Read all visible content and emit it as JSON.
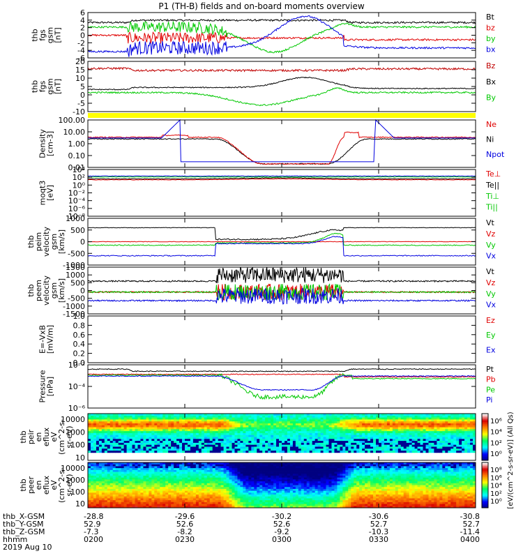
{
  "title": "P1 (TH-B) fields and on-board moments overview",
  "panels": [
    {
      "id": "fgs_gsm",
      "ylabel": [
        "thb",
        "fgs",
        "gsm",
        "[nT]"
      ],
      "yticks": [
        "6",
        "4",
        "2",
        "0",
        "-2",
        "-4",
        "-6"
      ],
      "legend": [
        {
          "text": "Bt",
          "color": "#000000"
        },
        {
          "text": "bz",
          "color": "#e00000"
        },
        {
          "text": "by",
          "color": "#00c800"
        },
        {
          "text": "bx",
          "color": "#0000e0"
        }
      ]
    },
    {
      "id": "fgs_gsm2",
      "ylabel": [
        "thb",
        "fgs",
        "gsm",
        "[nT]"
      ],
      "yticks": [
        "20",
        "15",
        "10",
        "5",
        "0",
        "-5",
        "-10"
      ],
      "legend": [
        {
          "text": "Bz",
          "color": "#c00000"
        },
        {
          "text": "Bx",
          "color": "#000000"
        },
        {
          "text": "By",
          "color": "#00c800"
        }
      ]
    },
    {
      "id": "density",
      "ylabel": [
        "Density",
        "[cm-3]"
      ],
      "yticks": [
        "100.00",
        "10.00",
        "1.00",
        "0.10",
        "0.01"
      ],
      "legend": [
        {
          "text": "Ne",
          "color": "#e00000"
        },
        {
          "text": "Ni",
          "color": "#000000"
        },
        {
          "text": "Npot",
          "color": "#0000e0"
        }
      ]
    },
    {
      "id": "temp",
      "ylabel": [
        "moqt3",
        "[eV]"
      ],
      "yticks": [
        "10⁴",
        "10²",
        "10⁰",
        "10⁻²",
        "10⁻⁴",
        "10⁻⁶",
        "10⁻⁸"
      ],
      "legend": [
        {
          "text": "Te⊥",
          "color": "#e00000"
        },
        {
          "text": "Te||",
          "color": "#000000"
        },
        {
          "text": "Ti⊥",
          "color": "#00c800"
        },
        {
          "text": "Ti||",
          "color": "#00c800"
        }
      ]
    },
    {
      "id": "peim",
      "ylabel": [
        "thb",
        "peim",
        "velocity",
        "gsm",
        "[km/s]"
      ],
      "yticks": [
        "1000",
        "500",
        "0",
        "-500",
        "-1000"
      ],
      "legend": [
        {
          "text": "Vt",
          "color": "#000000"
        },
        {
          "text": "Vz",
          "color": "#e00000"
        },
        {
          "text": "Vy",
          "color": "#00c800"
        },
        {
          "text": "Vx",
          "color": "#0000e0"
        }
      ]
    },
    {
      "id": "peem",
      "ylabel": [
        "thb",
        "peem",
        "velocity",
        "gsm",
        "[km/s]"
      ],
      "yticks": [
        "1500",
        "1000",
        "500",
        "0",
        "-500",
        "-1000",
        "-1500"
      ],
      "legend": [
        {
          "text": "Vt",
          "color": "#000000"
        },
        {
          "text": "Vz",
          "color": "#e00000"
        },
        {
          "text": "Vy",
          "color": "#00c800"
        },
        {
          "text": "Vx",
          "color": "#0000e0"
        }
      ]
    },
    {
      "id": "efield",
      "ylabel": [
        "E=-VxB",
        "[mV/m]"
      ],
      "yticks": [
        "1.0",
        "0.8",
        "0.6",
        "0.4",
        "0.2",
        "0.0"
      ],
      "legend": [
        {
          "text": "Ez",
          "color": "#e00000"
        },
        {
          "text": "Ey",
          "color": "#00c800"
        },
        {
          "text": "Ex",
          "color": "#0000e0"
        }
      ]
    },
    {
      "id": "pressure",
      "ylabel": [
        "Pressure",
        "[nPa]"
      ],
      "yticks": [
        "10⁻²",
        "10⁻⁴",
        "10⁻⁶"
      ],
      "legend": [
        {
          "text": "Pt",
          "color": "#000000"
        },
        {
          "text": "Pb",
          "color": "#e00000"
        },
        {
          "text": "Pe",
          "color": "#00c800"
        },
        {
          "text": "Pi",
          "color": "#0000e0"
        }
      ]
    },
    {
      "id": "peir",
      "ylabel": [
        "thb",
        "peir",
        "en",
        "eflux",
        "eV",
        "(cm^2-s-",
        "sr-eV)"
      ],
      "yticks": [
        "10000",
        "1000",
        "100",
        "10"
      ]
    },
    {
      "id": "peer",
      "ylabel": [
        "thb",
        "peer",
        "en",
        "eflux",
        "eV",
        "(cm^2-s-",
        "sr-eV)"
      ],
      "yticks": [
        "10000",
        "1000",
        "100",
        "10"
      ]
    }
  ],
  "colorbar": {
    "label": "[eV/(cm^2-s-sr-eV)] (All Qs)",
    "ticks1": [
      "10⁶",
      "10⁴",
      "10²",
      "10⁰"
    ],
    "ticks2": [
      "10⁸",
      "10⁶",
      "10⁴",
      "10²",
      "10⁰"
    ]
  },
  "xaxis": {
    "row_labels": [
      "thb_X-GSM",
      "thb_Y-GSM",
      "thb_Z-GSM",
      "hhmm",
      "2019 Aug 10"
    ],
    "ticks": [
      {
        "x": "-28.8",
        "y": "52.9",
        "z": "-7.3",
        "hhmm": "0200"
      },
      {
        "x": "-29.6",
        "y": "52.6",
        "z": "-8.2",
        "hhmm": "0230"
      },
      {
        "x": "-30.2",
        "y": "52.6",
        "z": "-9.2",
        "hhmm": "0300"
      },
      {
        "x": "-30.6",
        "y": "52.7",
        "z": "-10.3",
        "hhmm": "0330"
      },
      {
        "x": "-30.8",
        "y": "52.7",
        "z": "-11.4",
        "hhmm": "0400"
      }
    ]
  },
  "chart_data": {
    "type": "line",
    "title": "P1 (TH-B) fields and on-board moments overview",
    "x_range": [
      "0200",
      "0400"
    ],
    "series_approx": {
      "fgs_gsm_Bt": {
        "time": [
          "0200",
          "0230",
          "0300",
          "0315",
          "0330",
          "0400"
        ],
        "values": [
          4,
          4,
          4.5,
          5,
          4,
          4
        ]
      },
      "fgs_gsm_bx": {
        "time": [
          "0200",
          "0230",
          "0300",
          "0315",
          "0330",
          "0400"
        ],
        "values": [
          -3,
          -1.5,
          -3,
          5,
          -3,
          -2.5
        ]
      },
      "fgs_gsm_by": {
        "time": [
          "0200",
          "0230",
          "0300",
          "0315",
          "0330",
          "0400"
        ],
        "values": [
          2,
          2,
          1,
          -4,
          1,
          1
        ]
      },
      "fgs_gsm_bz": {
        "time": [
          "0200",
          "0230",
          "0300",
          "0315",
          "0330",
          "0400"
        ],
        "values": [
          0,
          -1,
          -1,
          -1,
          -2,
          -1
        ]
      }
    }
  }
}
